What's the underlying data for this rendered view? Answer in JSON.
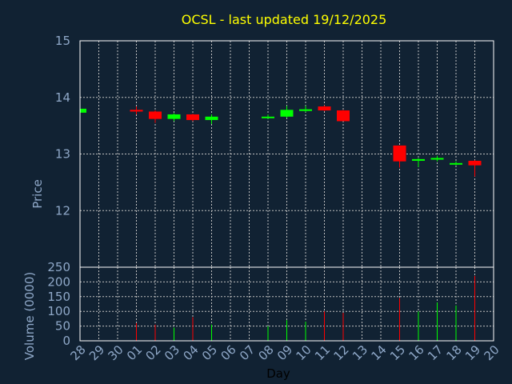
{
  "chart_data": {
    "type": "candlestick",
    "title": "OCSL - last updated 19/12/2025",
    "colors": {
      "background": "#112233",
      "frame": "#ffffff",
      "grid": "#c0c0c0",
      "title": "#ffff00",
      "text": "#8fa8c8",
      "up": "#00ff00",
      "down": "#ff0000"
    },
    "price": {
      "ylabel": "Price",
      "ylim": [
        11,
        15
      ],
      "yticks": [
        "12",
        "13",
        "14",
        "15"
      ]
    },
    "volume": {
      "ylabel": "Volume (0000)",
      "ylim": [
        0,
        250
      ],
      "yticks": [
        "0",
        "50",
        "100",
        "150",
        "200",
        "250"
      ]
    },
    "xlabel": "Day",
    "days": [
      "28",
      "29",
      "30",
      "01",
      "02",
      "03",
      "04",
      "05",
      "06",
      "07",
      "08",
      "09",
      "10",
      "11",
      "12",
      "13",
      "14",
      "15",
      "16",
      "17",
      "18",
      "19",
      "20"
    ],
    "candles": [
      {
        "day": "28",
        "open": 13.73,
        "high": 13.8,
        "low": 13.72,
        "close": 13.8,
        "volume": 55
      },
      {
        "day": "01",
        "open": 13.78,
        "high": 13.84,
        "low": 13.7,
        "close": 13.75,
        "volume": 60
      },
      {
        "day": "02",
        "open": 13.75,
        "high": 13.77,
        "low": 13.55,
        "close": 13.62,
        "volume": 55
      },
      {
        "day": "03",
        "open": 13.62,
        "high": 13.72,
        "low": 13.58,
        "close": 13.7,
        "volume": 45
      },
      {
        "day": "04",
        "open": 13.7,
        "high": 13.71,
        "low": 13.58,
        "close": 13.6,
        "volume": 80
      },
      {
        "day": "05",
        "open": 13.6,
        "high": 13.7,
        "low": 13.53,
        "close": 13.66,
        "volume": 55
      },
      {
        "day": "08",
        "open": 13.64,
        "high": 13.7,
        "low": 13.62,
        "close": 13.66,
        "volume": 50
      },
      {
        "day": "09",
        "open": 13.66,
        "high": 13.85,
        "low": 13.64,
        "close": 13.78,
        "volume": 70
      },
      {
        "day": "10",
        "open": 13.76,
        "high": 13.85,
        "low": 13.74,
        "close": 13.79,
        "volume": 65
      },
      {
        "day": "11",
        "open": 13.84,
        "high": 13.86,
        "low": 13.76,
        "close": 13.77,
        "volume": 100
      },
      {
        "day": "12",
        "open": 13.77,
        "high": 13.78,
        "low": 13.58,
        "close": 13.58,
        "volume": 95
      },
      {
        "day": "15",
        "open": 13.15,
        "high": 13.15,
        "low": 12.76,
        "close": 12.87,
        "volume": 145
      },
      {
        "day": "16",
        "open": 12.88,
        "high": 12.93,
        "low": 12.77,
        "close": 12.91,
        "volume": 100
      },
      {
        "day": "17",
        "open": 12.9,
        "high": 12.97,
        "low": 12.87,
        "close": 12.93,
        "volume": 130
      },
      {
        "day": "18",
        "open": 12.82,
        "high": 12.87,
        "low": 12.8,
        "close": 12.84,
        "volume": 120
      },
      {
        "day": "19",
        "open": 12.88,
        "high": 12.89,
        "low": 12.6,
        "close": 12.8,
        "volume": 220
      }
    ]
  }
}
